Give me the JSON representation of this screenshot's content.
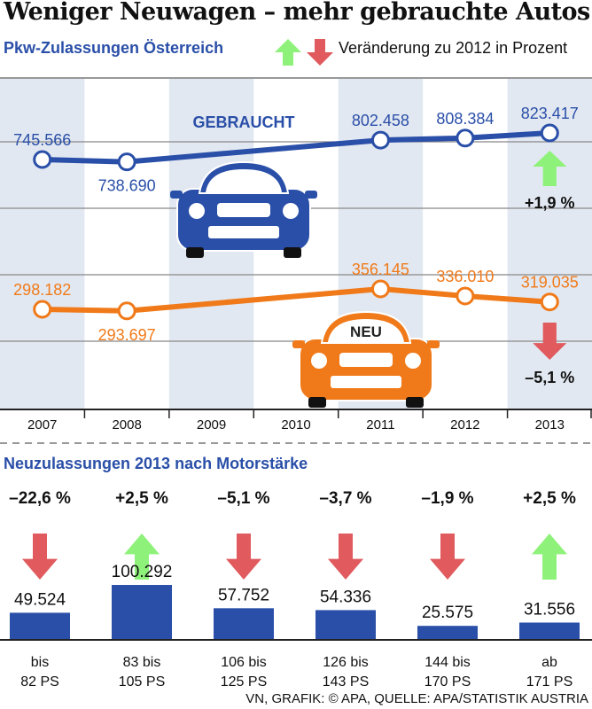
{
  "title": "Weniger Neuwagen – mehr gebrauchte Autos",
  "colors": {
    "blue": "#2a4fa8",
    "orange": "#f07a1a",
    "up": "#8ef27a",
    "down": "#e05a5e",
    "column_shade": "#e2e8f1",
    "bar": "#2a4fa8"
  },
  "legend": {
    "text": "Veränderung zu 2012 in Prozent",
    "icons": [
      "arrow-up-green-icon",
      "arrow-down-red-icon"
    ]
  },
  "chart_data": [
    {
      "type": "line",
      "title": "Pkw-Zulassungen Österreich",
      "categories": [
        "2007",
        "2008",
        "2009",
        "2010",
        "2011",
        "2012",
        "2013"
      ],
      "series": [
        {
          "name": "GEBRAUCHT",
          "x": [
            "2007",
            "2008",
            "2011",
            "2012",
            "2013"
          ],
          "values": [
            745566,
            738690,
            802458,
            808384,
            823417
          ],
          "labels": [
            "745.566",
            "738.690",
            "802.458",
            "808.384",
            "823.417"
          ],
          "change": "+1,9 %",
          "direction": "up"
        },
        {
          "name": "NEU",
          "x": [
            "2007",
            "2008",
            "2011",
            "2012",
            "2013"
          ],
          "values": [
            298182,
            293697,
            356145,
            336010,
            319035
          ],
          "labels": [
            "298.182",
            "293.697",
            "356.145",
            "336.010",
            "319.035"
          ],
          "change": "–5,1 %",
          "direction": "down"
        }
      ],
      "grid": true
    },
    {
      "type": "bar",
      "title": "Neuzulassungen 2013 nach Motorstärke",
      "categories": [
        [
          "bis",
          "82 PS"
        ],
        [
          "83 bis",
          "105 PS"
        ],
        [
          "106 bis",
          "125 PS"
        ],
        [
          "126 bis",
          "143 PS"
        ],
        [
          "144 bis",
          "170 PS"
        ],
        [
          "ab",
          "171 PS"
        ]
      ],
      "values": [
        49524,
        100292,
        57752,
        54336,
        25575,
        31556
      ],
      "labels": [
        "49.524",
        "100.292",
        "57.752",
        "54.336",
        "25.575",
        "31.556"
      ],
      "changes": [
        "–22,6 %",
        "+2,5 %",
        "–5,1 %",
        "–3,7 %",
        "–1,9 %",
        "+2,5 %"
      ],
      "directions": [
        "down",
        "up",
        "down",
        "down",
        "down",
        "up"
      ]
    }
  ],
  "footer": "VN, GRAFIK: © APA, QUELLE: APA/STATISTIK AUSTRIA"
}
